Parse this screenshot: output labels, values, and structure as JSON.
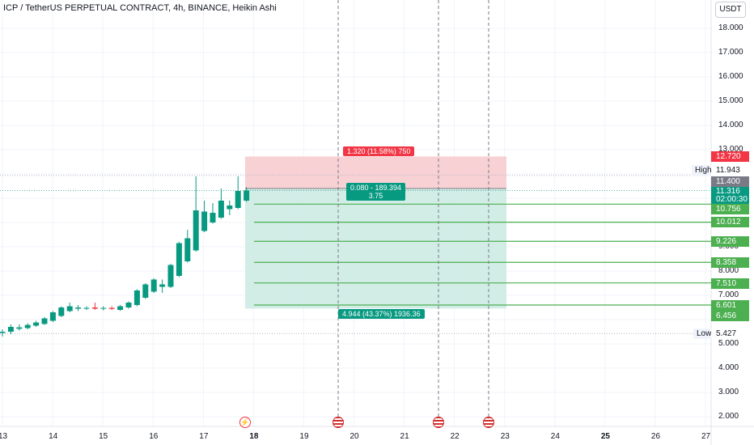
{
  "title": "ICP / TetherUS PERPETUAL CONTRACT, 4h, BINANCE, Heikin Ashi",
  "currency_button": "USDT",
  "y_axis": {
    "ticks": [
      "18.000",
      "17.000",
      "16.000",
      "15.000",
      "14.000",
      "13.000",
      "12.000",
      "11.000",
      "10.000",
      "9.000",
      "8.000",
      "7.000",
      "6.000",
      "5.000",
      "4.000",
      "3.000",
      "2.000"
    ],
    "tick_values": [
      18,
      17,
      16,
      15,
      14,
      13,
      12,
      11,
      10,
      9,
      8,
      7,
      6,
      5,
      4,
      3,
      2
    ]
  },
  "x_axis": {
    "labels": [
      "13",
      "14",
      "15",
      "16",
      "17",
      "18",
      "19",
      "20",
      "21",
      "22",
      "23",
      "24",
      "25",
      "26",
      "27"
    ],
    "label_values": [
      13,
      14,
      15,
      16,
      17,
      18,
      19,
      20,
      21,
      22,
      23,
      24,
      25,
      26,
      27
    ],
    "bold": [
      "18",
      "25"
    ]
  },
  "high": {
    "label": "High",
    "value": "11.943"
  },
  "low": {
    "label": "Low",
    "value": "5.427"
  },
  "current_price": {
    "value": "11.316",
    "countdown": "02:00:30"
  },
  "price_tags": [
    {
      "value": "12.720",
      "color": "red"
    },
    {
      "value": "11.400",
      "color": "gray"
    },
    {
      "value": "10.756",
      "color": "green"
    },
    {
      "value": "10.012",
      "color": "green"
    },
    {
      "value": "9.226",
      "color": "green"
    },
    {
      "value": "8.358",
      "color": "green"
    },
    {
      "value": "7.510",
      "color": "green"
    },
    {
      "value": "6.601",
      "color": "green"
    },
    {
      "value": "6.456",
      "color": "green"
    }
  ],
  "position": {
    "stop_label": "1.320 (11.58%) 750",
    "entry_label_1": "0.080 - 189.394",
    "entry_label_2": "3.75",
    "target_label": "4.944 (43.37%) 1936.36",
    "entry": 11.4,
    "stop": 12.72,
    "target": 6.456,
    "take_profits": [
      10.756,
      10.012,
      9.226,
      8.358,
      7.51,
      6.601
    ]
  },
  "events": [
    {
      "icon": "lightning-event-icon",
      "color": "#f23645"
    },
    {
      "icon": "us-flag-icon",
      "color": "#d32f2f"
    },
    {
      "icon": "us-flag-icon",
      "color": "#d32f2f"
    },
    {
      "icon": "us-flag-icon",
      "color": "#d32f2f"
    }
  ],
  "colors": {
    "up": "#089981",
    "down": "#f23645",
    "stop_zone": "#f7c9cd",
    "target_zone": "#cdebe3",
    "tp_line": "#4caf50"
  },
  "chart_data": {
    "type": "candlestick",
    "style": "Heikin Ashi",
    "candles": [
      {
        "o": 5.45,
        "h": 5.6,
        "l": 5.3,
        "c": 5.5
      },
      {
        "o": 5.5,
        "h": 5.8,
        "l": 5.4,
        "c": 5.7
      },
      {
        "o": 5.62,
        "h": 5.8,
        "l": 5.55,
        "c": 5.68
      },
      {
        "o": 5.65,
        "h": 5.85,
        "l": 5.6,
        "c": 5.78
      },
      {
        "o": 5.75,
        "h": 5.95,
        "l": 5.7,
        "c": 5.88
      },
      {
        "o": 5.82,
        "h": 6.1,
        "l": 5.78,
        "c": 6.05
      },
      {
        "o": 5.95,
        "h": 6.35,
        "l": 5.9,
        "c": 6.3
      },
      {
        "o": 6.15,
        "h": 6.55,
        "l": 6.1,
        "c": 6.5
      },
      {
        "o": 6.35,
        "h": 6.7,
        "l": 6.3,
        "c": 6.55
      },
      {
        "o": 6.45,
        "h": 6.6,
        "l": 6.35,
        "c": 6.5
      },
      {
        "o": 6.47,
        "h": 6.55,
        "l": 6.4,
        "c": 6.48
      },
      {
        "o": 6.5,
        "h": 6.7,
        "l": 6.4,
        "c": 6.45
      },
      {
        "o": 6.46,
        "h": 6.55,
        "l": 6.38,
        "c": 6.48
      },
      {
        "o": 6.48,
        "h": 6.55,
        "l": 6.4,
        "c": 6.44
      },
      {
        "o": 6.4,
        "h": 6.6,
        "l": 6.36,
        "c": 6.55
      },
      {
        "o": 6.5,
        "h": 6.75,
        "l": 6.45,
        "c": 6.7
      },
      {
        "o": 6.6,
        "h": 7.25,
        "l": 6.55,
        "c": 7.2
      },
      {
        "o": 6.9,
        "h": 7.5,
        "l": 6.85,
        "c": 7.45
      },
      {
        "o": 7.15,
        "h": 7.7,
        "l": 7.1,
        "c": 7.65
      },
      {
        "o": 7.35,
        "h": 7.65,
        "l": 7.1,
        "c": 7.45
      },
      {
        "o": 7.35,
        "h": 8.3,
        "l": 7.3,
        "c": 8.25
      },
      {
        "o": 7.8,
        "h": 9.2,
        "l": 7.75,
        "c": 9.15
      },
      {
        "o": 8.4,
        "h": 9.7,
        "l": 8.35,
        "c": 9.35
      },
      {
        "o": 8.85,
        "h": 11.9,
        "l": 8.8,
        "c": 10.5
      },
      {
        "o": 9.65,
        "h": 10.9,
        "l": 9.6,
        "c": 10.45
      },
      {
        "o": 10.0,
        "h": 10.8,
        "l": 9.95,
        "c": 10.4
      },
      {
        "o": 10.2,
        "h": 11.4,
        "l": 10.15,
        "c": 10.9
      },
      {
        "o": 10.55,
        "h": 10.9,
        "l": 10.3,
        "c": 10.7
      },
      {
        "o": 10.6,
        "h": 11.9,
        "l": 10.55,
        "c": 11.3
      },
      {
        "o": 10.9,
        "h": 11.45,
        "l": 10.85,
        "c": 11.32
      }
    ]
  }
}
